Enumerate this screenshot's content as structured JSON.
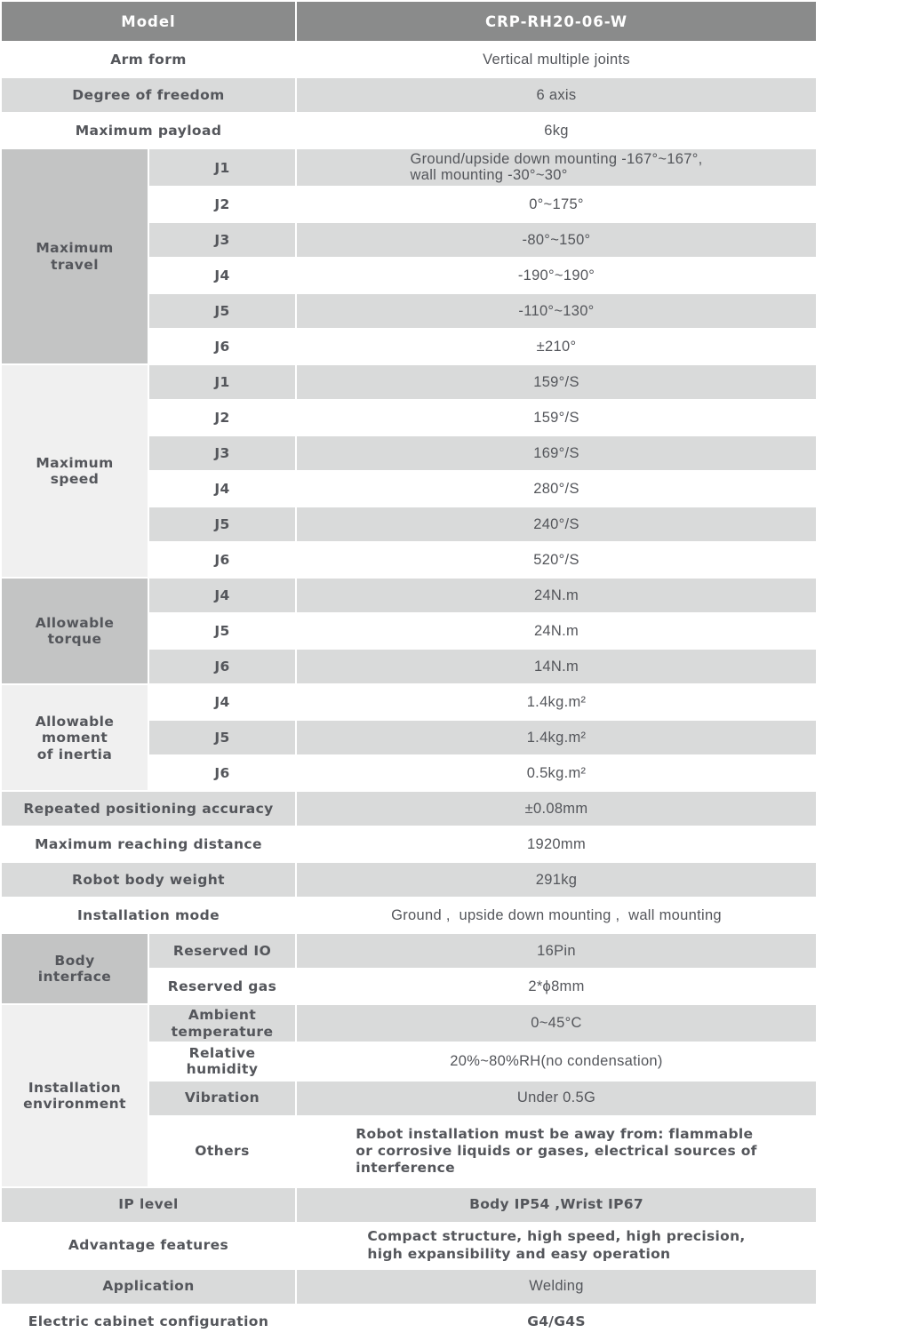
{
  "colors": {
    "header_bg": "#8a8b8b",
    "header_text": "#ffffff",
    "row_gray": "#d9dada",
    "row_white": "#ffffff",
    "group_dark": "#c3c4c4",
    "group_light": "#f0f0f0",
    "text": "#54565b"
  },
  "table": {
    "header": {
      "label": "Model",
      "value": "CRP-RH20-06-W"
    },
    "rows": [
      {
        "label": "Arm form",
        "value": "Vertical multiple joints",
        "shade": "white"
      },
      {
        "label": "Degree of freedom",
        "value": "6 axis",
        "shade": "gray"
      },
      {
        "label": "Maximum payload",
        "value": "6kg",
        "shade": "white"
      },
      {
        "group": {
          "label": "Maximum\ntravel",
          "shade": "dark",
          "span": 6
        },
        "sub": "J1",
        "value": "Ground/upside down mounting -167°~167°,\nwall mounting -30°~30°",
        "shade": "gray"
      },
      {
        "sub": "J2",
        "value": "0°~175°",
        "shade": "white"
      },
      {
        "sub": "J3",
        "value": "-80°~150°",
        "shade": "gray"
      },
      {
        "sub": "J4",
        "value": "-190°~190°",
        "shade": "white"
      },
      {
        "sub": "J5",
        "value": "-110°~130°",
        "shade": "gray"
      },
      {
        "sub": "J6",
        "value": "±210°",
        "shade": "white"
      },
      {
        "group": {
          "label": "Maximum\nspeed",
          "shade": "light",
          "span": 6
        },
        "sub": "J1",
        "value": "159°/S",
        "shade": "gray"
      },
      {
        "sub": "J2",
        "value": "159°/S",
        "shade": "white"
      },
      {
        "sub": "J3",
        "value": "169°/S",
        "shade": "gray"
      },
      {
        "sub": "J4",
        "value": "280°/S",
        "shade": "white"
      },
      {
        "sub": "J5",
        "value": "240°/S",
        "shade": "gray"
      },
      {
        "sub": "J6",
        "value": "520°/S",
        "shade": "white"
      },
      {
        "group": {
          "label": "Allowable\ntorque",
          "shade": "dark",
          "span": 3
        },
        "sub": "J4",
        "value": "24N.m",
        "shade": "gray"
      },
      {
        "sub": "J5",
        "value": "24N.m",
        "shade": "white"
      },
      {
        "sub": "J6",
        "value": "14N.m",
        "shade": "gray"
      },
      {
        "group": {
          "label": "Allowable\nmoment\nof inertia",
          "shade": "light",
          "span": 3
        },
        "sub": "J4",
        "value": "1.4kg.m²",
        "shade": "white"
      },
      {
        "sub": "J5",
        "value": "1.4kg.m²",
        "shade": "gray"
      },
      {
        "sub": "J6",
        "value": "0.5kg.m²",
        "shade": "white"
      },
      {
        "label": "Repeated positioning accuracy",
        "value": "±0.08mm",
        "shade": "gray"
      },
      {
        "label": "Maximum reaching distance",
        "value": "1920mm",
        "shade": "white"
      },
      {
        "label": "Robot body weight",
        "value": "291kg",
        "shade": "gray"
      },
      {
        "label": "Installation mode",
        "value": "Ground ,  upside down mounting ,  wall mounting",
        "shade": "white"
      },
      {
        "group": {
          "label": "Body\ninterface",
          "shade": "dark",
          "span": 2
        },
        "sub": "Reserved IO",
        "value": "16Pin",
        "shade": "gray"
      },
      {
        "sub": "Reserved gas",
        "value": "2*ϕ8mm",
        "shade": "white"
      },
      {
        "group": {
          "label": "Installation\nenvironment",
          "shade": "light",
          "span": 4
        },
        "sub": "Ambient\ntemperature",
        "value": "0~45°C",
        "shade": "gray"
      },
      {
        "sub": "Relative\nhumidity",
        "value": "20%~80%RH(no condensation)",
        "shade": "white"
      },
      {
        "sub": "Vibration",
        "value": "Under 0.5G",
        "shade": "gray"
      },
      {
        "sub": "Others",
        "value": "Robot installation must be away from: flammable\nor corrosive liquids or gases, electrical sources of\ninterference",
        "shade": "white",
        "emphasis": true
      },
      {
        "label": "IP level",
        "value": "Body IP54 ,Wrist IP67",
        "shade": "gray",
        "emphasis": true
      },
      {
        "label": "Advantage features",
        "value": "Compact structure, high speed, high precision,\nhigh expansibility and easy operation",
        "shade": "white",
        "emphasis": true
      },
      {
        "label": "Application",
        "value": "Welding",
        "shade": "gray"
      },
      {
        "label": "Electric cabinet configuration",
        "value": "G4/G4S",
        "shade": "white",
        "emphasis": true
      }
    ]
  }
}
